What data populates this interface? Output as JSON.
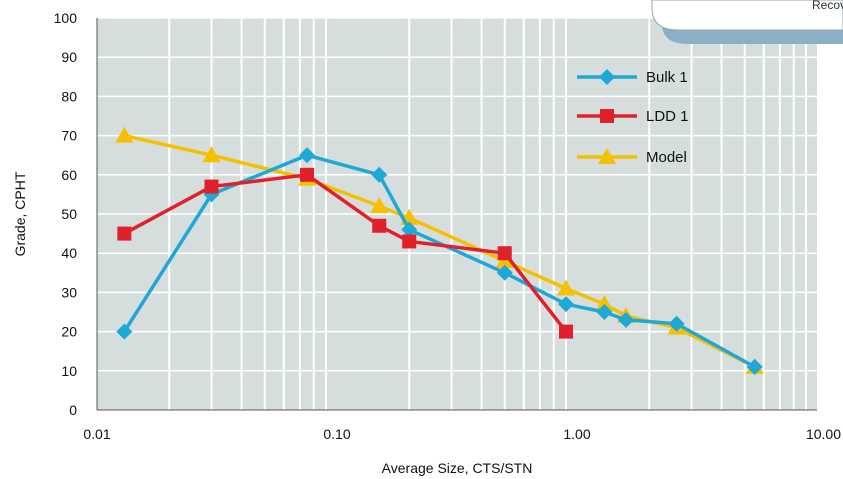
{
  "chart_data": {
    "type": "line",
    "xscale": "log",
    "xlim": [
      0.01,
      10
    ],
    "ylim": [
      0,
      100
    ],
    "xlabel": "Average Size, CTS/STN",
    "ylabel": "Grade, CPHT",
    "xticks": [
      "0.01",
      "0.10",
      "1.00",
      "10.00"
    ],
    "yticks": [
      "0",
      "10",
      "20",
      "30",
      "40",
      "50",
      "60",
      "70",
      "80",
      "90",
      "100"
    ],
    "grid": true,
    "legend_position": "top-right",
    "callout_text": "Recov",
    "series": [
      {
        "name": "Bulk 1",
        "color": "#1ea8d8",
        "marker": "diamond",
        "points": [
          {
            "x": 0.013,
            "y": 20
          },
          {
            "x": 0.03,
            "y": 55
          },
          {
            "x": 0.075,
            "y": 65
          },
          {
            "x": 0.15,
            "y": 60
          },
          {
            "x": 0.2,
            "y": 46
          },
          {
            "x": 0.5,
            "y": 35
          },
          {
            "x": 0.9,
            "y": 27
          },
          {
            "x": 1.3,
            "y": 25
          },
          {
            "x": 1.6,
            "y": 23
          },
          {
            "x": 2.6,
            "y": 22
          },
          {
            "x": 5.5,
            "y": 11
          }
        ]
      },
      {
        "name": "LDD 1",
        "color": "#e0202a",
        "marker": "square",
        "points": [
          {
            "x": 0.013,
            "y": 45
          },
          {
            "x": 0.03,
            "y": 57
          },
          {
            "x": 0.075,
            "y": 60
          },
          {
            "x": 0.15,
            "y": 47
          },
          {
            "x": 0.2,
            "y": 43
          },
          {
            "x": 0.5,
            "y": 40
          },
          {
            "x": 0.9,
            "y": 20
          }
        ]
      },
      {
        "name": "Model",
        "color": "#f5c000",
        "marker": "triangle",
        "points": [
          {
            "x": 0.013,
            "y": 70
          },
          {
            "x": 0.03,
            "y": 65
          },
          {
            "x": 0.075,
            "y": 59
          },
          {
            "x": 0.15,
            "y": 52
          },
          {
            "x": 0.2,
            "y": 49
          },
          {
            "x": 0.5,
            "y": 38
          },
          {
            "x": 0.9,
            "y": 31
          },
          {
            "x": 1.3,
            "y": 27
          },
          {
            "x": 1.6,
            "y": 24
          },
          {
            "x": 2.6,
            "y": 21
          },
          {
            "x": 5.5,
            "y": 11
          }
        ]
      }
    ]
  }
}
